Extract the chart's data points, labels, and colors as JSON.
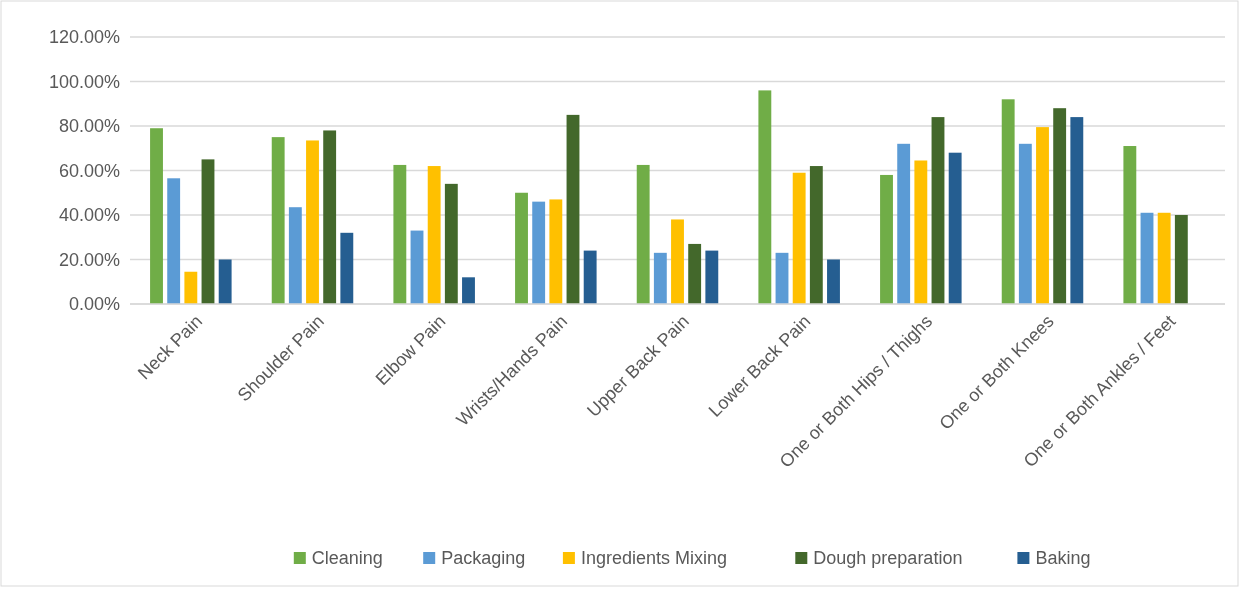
{
  "chart_data": {
    "type": "bar",
    "categories": [
      "Neck Pain",
      "Shoulder Pain",
      "Elbow Pain",
      "Wrists/Hands Pain",
      "Upper Back Pain",
      "Lower Back Pain",
      "One or Both Hips / Thighs",
      "One or Both Knees",
      "One or Both Ankles / Feet"
    ],
    "series": [
      {
        "name": "Cleaning",
        "color": "#70ad47",
        "values": [
          79,
          75,
          62.5,
          50,
          62.5,
          96,
          58,
          92,
          71
        ]
      },
      {
        "name": "Packaging",
        "color": "#5b9bd5",
        "values": [
          56.5,
          43.5,
          33,
          46,
          23,
          23,
          72,
          72,
          41
        ]
      },
      {
        "name": "Ingredients Mixing",
        "color": "#ffc000",
        "values": [
          14.5,
          73.5,
          62,
          47,
          38,
          59,
          64.5,
          79.5,
          41
        ]
      },
      {
        "name": "Dough preparation",
        "color": "#43682b",
        "values": [
          65,
          78,
          54,
          85,
          27,
          62,
          84,
          88,
          40
        ]
      },
      {
        "name": "Baking",
        "color": "#255e91",
        "values": [
          20,
          32,
          12,
          24,
          24,
          20,
          68,
          84,
          null
        ]
      }
    ],
    "ylim": [
      0,
      120
    ],
    "yticks": [
      {
        "value": 0,
        "label": "0.00%"
      },
      {
        "value": 20,
        "label": "20.00%"
      },
      {
        "value": 40,
        "label": "40.00%"
      },
      {
        "value": 60,
        "label": "60.00%"
      },
      {
        "value": 80,
        "label": "80.00%"
      },
      {
        "value": 100,
        "label": "100.00%"
      },
      {
        "value": 120,
        "label": "120.00%"
      }
    ],
    "grid": "y",
    "legend": "bottom"
  }
}
